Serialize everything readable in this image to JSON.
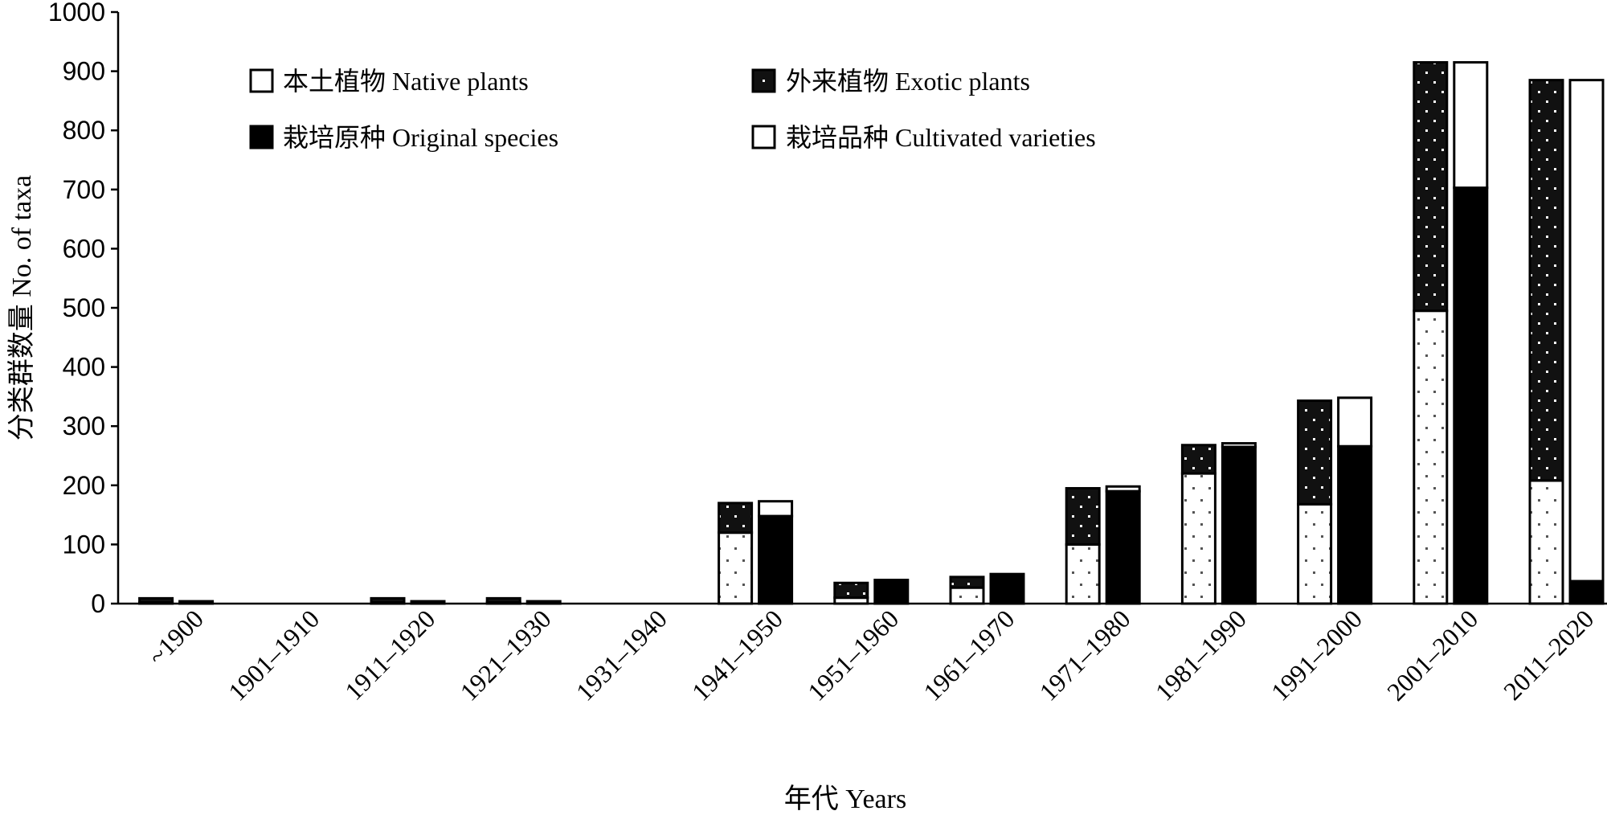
{
  "chart_data": {
    "type": "bar",
    "subtype": "grouped-stacked",
    "title": "",
    "xlabel": "年代 Years",
    "ylabel": "分类群数量 No. of taxa",
    "ylim": [
      0,
      1000
    ],
    "yticks": [
      0,
      100,
      200,
      300,
      400,
      500,
      600,
      700,
      800,
      900,
      1000
    ],
    "categories": [
      "~1900",
      "1901–1910",
      "1911–1920",
      "1921–1930",
      "1931–1940",
      "1941–1950",
      "1951–1960",
      "1961–1970",
      "1971–1980",
      "1981–1990",
      "1991–2000",
      "2001–2010",
      "2011–2020"
    ],
    "legend_position": "top-left, inside plot, two columns",
    "stacks": [
      {
        "series": [
          {
            "name": "本土植物 Native plants",
            "fill": "#ffffff",
            "pattern": "sparse-dots",
            "values": [
              2,
              0,
              2,
              2,
              0,
              120,
              10,
              27,
              100,
              220,
              168,
              495,
              208
            ]
          },
          {
            "name": "外来植物 Exotic plants",
            "fill": "#111111",
            "pattern": "white-dots",
            "values": [
              7,
              0,
              7,
              7,
              0,
              50,
              25,
              18,
              95,
              48,
              175,
              420,
              677
            ]
          }
        ]
      },
      {
        "series": [
          {
            "name": "栽培原种 Original species",
            "fill": "#000000",
            "pattern": "solid",
            "values": [
              4,
              0,
              4,
              4,
              0,
              148,
              40,
              50,
              190,
              265,
              266,
              703,
              38
            ]
          },
          {
            "name": "栽培品种 Cultivated varieties",
            "fill": "#ffffff",
            "pattern": "solid",
            "values": [
              0,
              0,
              0,
              0,
              0,
              25,
              0,
              0,
              8,
              6,
              82,
              212,
              847
            ]
          }
        ]
      }
    ]
  }
}
